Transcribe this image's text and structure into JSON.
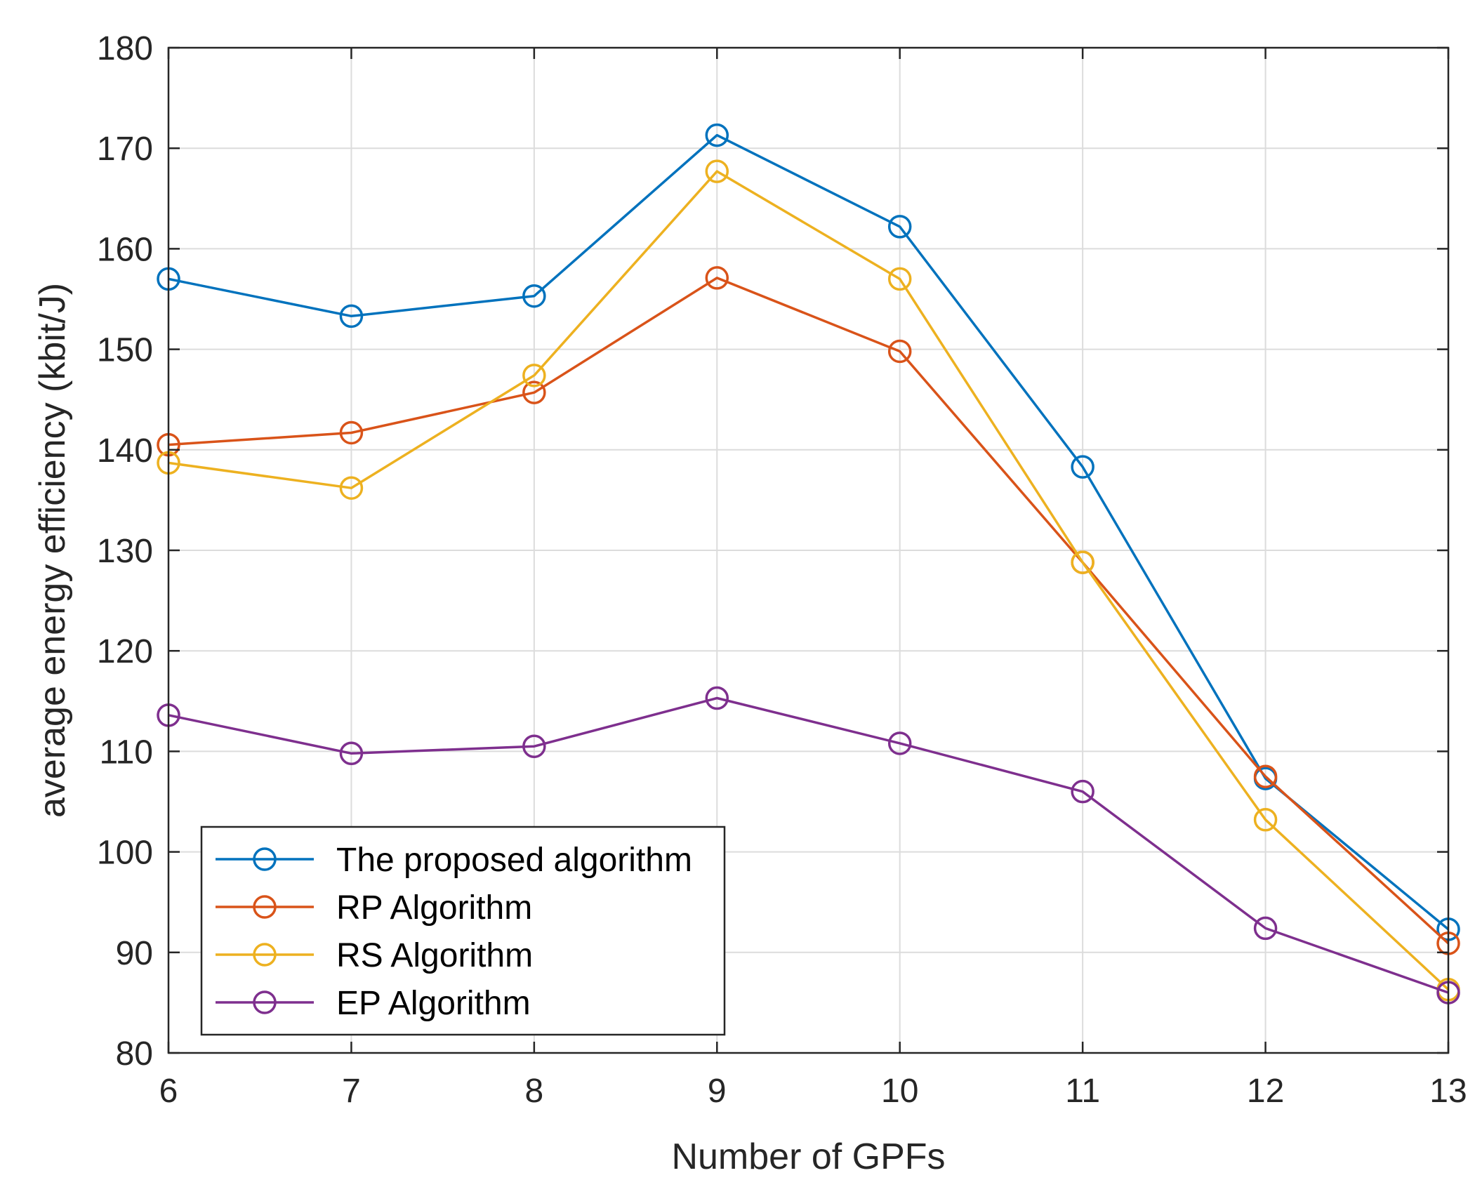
{
  "chart_data": {
    "type": "line",
    "title": "",
    "xlabel": "Number of GPFs",
    "ylabel": "average energy efficiency (kbit/J)",
    "x": [
      6,
      7,
      8,
      9,
      10,
      11,
      12,
      13
    ],
    "xlim": [
      6,
      13
    ],
    "ylim": [
      80,
      180
    ],
    "xticks": [
      6,
      7,
      8,
      9,
      10,
      11,
      12,
      13
    ],
    "yticks": [
      80,
      90,
      100,
      110,
      120,
      130,
      140,
      150,
      160,
      170,
      180
    ],
    "grid": true,
    "legend_position": "bottom-left",
    "marker": "circle",
    "series": [
      {
        "name": "The proposed algorithm",
        "color": "#0072BD",
        "values": [
          157.0,
          153.3,
          155.3,
          171.3,
          162.2,
          138.3,
          107.3,
          92.3
        ]
      },
      {
        "name": "RP Algorithm",
        "color": "#D95319",
        "values": [
          140.5,
          141.7,
          145.7,
          157.1,
          149.8,
          128.8,
          107.5,
          90.9
        ]
      },
      {
        "name": "RS Algorithm",
        "color": "#EDB120",
        "values": [
          138.7,
          136.2,
          147.4,
          167.7,
          157.0,
          128.8,
          103.2,
          86.3
        ]
      },
      {
        "name": "EP Algorithm",
        "color": "#7E2F8E",
        "values": [
          113.6,
          109.8,
          110.5,
          115.3,
          110.8,
          106.0,
          92.4,
          86.0
        ]
      }
    ]
  }
}
